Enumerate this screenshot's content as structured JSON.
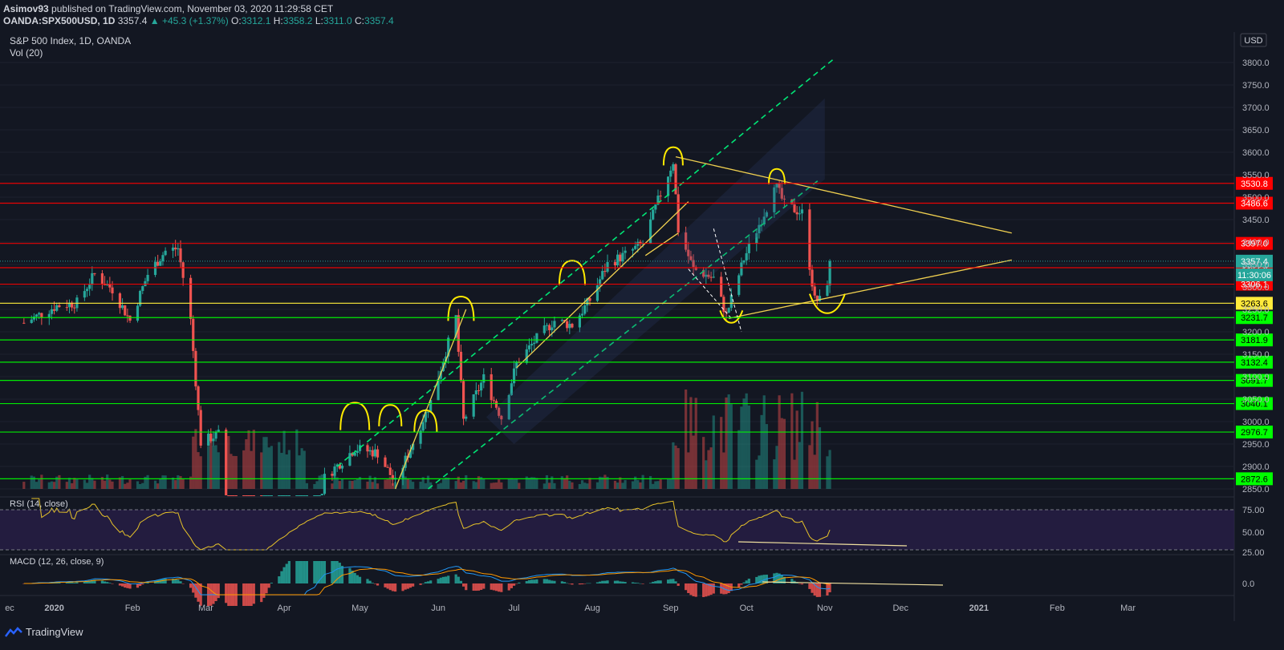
{
  "header": {
    "publisher": "Asimov93",
    "published_text": "published on TradingView.com, November 03, 2020 11:29:58 CET",
    "symbol": "OANDA:SPX500USD, 1D",
    "last": "3357.4",
    "change": "▲ +45.3 (+1.37%)",
    "o_label": "O:",
    "o": "3312.1",
    "h_label": "H:",
    "h": "3358.2",
    "l_label": "L:",
    "l": "3311.0",
    "c_label": "C:",
    "c": "3357.4"
  },
  "legend": {
    "title": "S&P 500 Index, 1D, OANDA",
    "vol": "Vol (20)",
    "rsi": "RSI (14, close)",
    "macd": "MACD (12, 26, close, 9)"
  },
  "currency": "USD",
  "footer": {
    "brand": "TradingView"
  },
  "colors": {
    "bg": "#131722",
    "up": "#26a69a",
    "down": "#ef5350",
    "red_level": "#ff0000",
    "green_level": "#00ff00",
    "yellow_level": "#ffeb3b",
    "channel": "#00e676",
    "trend": "#f0d050"
  },
  "chart_data": {
    "type": "candlestick",
    "title": "S&P 500 Index, 1D, OANDA",
    "ylim": [
      2850,
      3800
    ],
    "y_ticks": [
      2850,
      2900,
      2950,
      3000,
      3050,
      3100,
      3150,
      3200,
      3250,
      3300,
      3350,
      3400,
      3450,
      3500,
      3550,
      3600,
      3650,
      3700,
      3750,
      3800
    ],
    "y_tick_labels": [
      "2850.0",
      "2900.0",
      "2950.0",
      "3000.0",
      "3050.0",
      "3100.0",
      "3150.0",
      "3200.0",
      "3250.0",
      "3300.0",
      "3350.0",
      "3400.0",
      "3450.0",
      "3500.0",
      "3550.0",
      "3600.0",
      "3650.0",
      "3700.0",
      "3750.0",
      "3800.0"
    ],
    "x_labels": [
      "ec",
      "2020",
      "Feb",
      "Mar",
      "Apr",
      "May",
      "Jun",
      "Jul",
      "Aug",
      "Sep",
      "Oct",
      "Nov",
      "Dec",
      "2021",
      "Feb",
      "Mar"
    ],
    "price_levels": [
      {
        "value": 3530.8,
        "label": "3530.8",
        "color": "red"
      },
      {
        "value": 3486.6,
        "label": "3486.6",
        "color": "red"
      },
      {
        "value": 3397.0,
        "label": "3397.0",
        "color": "red"
      },
      {
        "value": 3342.8,
        "label": "3342.8",
        "color": "red"
      },
      {
        "value": 3306.1,
        "label": "3306.1",
        "color": "red"
      },
      {
        "value": 3263.6,
        "label": "3263.6",
        "color": "yellow"
      },
      {
        "value": 3231.7,
        "label": "3231.7",
        "color": "green"
      },
      {
        "value": 3181.9,
        "label": "3181.9",
        "color": "green"
      },
      {
        "value": 3132.4,
        "label": "3132.4",
        "color": "green"
      },
      {
        "value": 3091.7,
        "label": "3091.7",
        "color": "green"
      },
      {
        "value": 3040.1,
        "label": "3040.1",
        "color": "green"
      },
      {
        "value": 2976.7,
        "label": "2976.7",
        "color": "green"
      },
      {
        "value": 2872.6,
        "label": "2872.6",
        "color": "green"
      }
    ],
    "last_price": {
      "value": 3357.4,
      "label": "3357.4",
      "countdown": "11:30:06"
    },
    "close_series": [
      {
        "date": "2019-12-20",
        "close": 3220
      },
      {
        "date": "2020-01-02",
        "close": 3258
      },
      {
        "date": "2020-01-10",
        "close": 3265
      },
      {
        "date": "2020-01-17",
        "close": 3329
      },
      {
        "date": "2020-01-24",
        "close": 3295
      },
      {
        "date": "2020-01-31",
        "close": 3225
      },
      {
        "date": "2020-02-07",
        "close": 3328
      },
      {
        "date": "2020-02-14",
        "close": 3380
      },
      {
        "date": "2020-02-19",
        "close": 3386
      },
      {
        "date": "2020-02-24",
        "close": 3225
      },
      {
        "date": "2020-02-28",
        "close": 2954
      },
      {
        "date": "2020-03-06",
        "close": 2972
      },
      {
        "date": "2020-03-12",
        "close": 2480
      },
      {
        "date": "2020-03-23",
        "close": 2237
      },
      {
        "date": "2020-04-03",
        "close": 2488
      },
      {
        "date": "2020-04-17",
        "close": 2875
      },
      {
        "date": "2020-04-29",
        "close": 2940
      },
      {
        "date": "2020-05-08",
        "close": 2930
      },
      {
        "date": "2020-05-15",
        "close": 2863
      },
      {
        "date": "2020-05-29",
        "close": 3044
      },
      {
        "date": "2020-06-08",
        "close": 3232
      },
      {
        "date": "2020-06-11",
        "close": 3002
      },
      {
        "date": "2020-06-19",
        "close": 3097
      },
      {
        "date": "2020-06-26",
        "close": 3009
      },
      {
        "date": "2020-07-02",
        "close": 3130
      },
      {
        "date": "2020-07-10",
        "close": 3185
      },
      {
        "date": "2020-07-17",
        "close": 3225
      },
      {
        "date": "2020-07-24",
        "close": 3215
      },
      {
        "date": "2020-07-31",
        "close": 3271
      },
      {
        "date": "2020-08-07",
        "close": 3351
      },
      {
        "date": "2020-08-14",
        "close": 3372
      },
      {
        "date": "2020-08-21",
        "close": 3397
      },
      {
        "date": "2020-08-28",
        "close": 3508
      },
      {
        "date": "2020-09-02",
        "close": 3580
      },
      {
        "date": "2020-09-04",
        "close": 3427
      },
      {
        "date": "2020-09-10",
        "close": 3340
      },
      {
        "date": "2020-09-18",
        "close": 3319
      },
      {
        "date": "2020-09-23",
        "close": 3237
      },
      {
        "date": "2020-09-30",
        "close": 3363
      },
      {
        "date": "2020-10-09",
        "close": 3477
      },
      {
        "date": "2020-10-12",
        "close": 3534
      },
      {
        "date": "2020-10-16",
        "close": 3483
      },
      {
        "date": "2020-10-23",
        "close": 3465
      },
      {
        "date": "2020-10-28",
        "close": 3271
      },
      {
        "date": "2020-10-30",
        "close": 3270
      },
      {
        "date": "2020-11-02",
        "close": 3312
      },
      {
        "date": "2020-11-03",
        "close": 3357.4
      }
    ],
    "rsi": {
      "ylim": [
        0,
        100
      ],
      "y_tick_labels": [
        "75.00",
        "50.00",
        "25.00"
      ],
      "bands": [
        30,
        70
      ]
    },
    "macd": {
      "y_tick_labels": [
        "0.0"
      ]
    }
  }
}
